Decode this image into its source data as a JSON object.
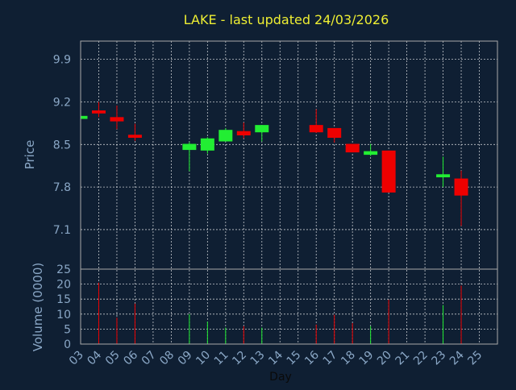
{
  "chart_data": {
    "type": "candlestick",
    "title": "LAKE - last updated 24/03/2026",
    "xlabel": "Day",
    "ylabel_price": "Price",
    "ylabel_volume": "Volume (0000)",
    "x_ticks": [
      "03",
      "04",
      "05",
      "06",
      "07",
      "08",
      "09",
      "10",
      "11",
      "12",
      "13",
      "14",
      "15",
      "16",
      "17",
      "18",
      "19",
      "20",
      "21",
      "22",
      "23",
      "24",
      "25"
    ],
    "price_ticks": [
      9.9,
      9.2,
      8.5,
      7.8,
      7.1
    ],
    "price_ylim": [
      6.45,
      10.2
    ],
    "volume_ticks": [
      0,
      5,
      10,
      15,
      20,
      25
    ],
    "volume_ylim": [
      0,
      25
    ],
    "grid": true,
    "candles": [
      {
        "day": 3,
        "open": 8.92,
        "high": 8.98,
        "low": 8.92,
        "close": 8.97
      },
      {
        "day": 4,
        "open": 9.06,
        "high": 9.2,
        "low": 8.95,
        "close": 9.01
      },
      {
        "day": 5,
        "open": 8.95,
        "high": 9.14,
        "low": 8.75,
        "close": 8.88
      },
      {
        "day": 6,
        "open": 8.66,
        "high": 8.84,
        "low": 8.56,
        "close": 8.61
      },
      {
        "day": 9,
        "open": 8.41,
        "high": 8.54,
        "low": 8.06,
        "close": 8.51
      },
      {
        "day": 10,
        "open": 8.4,
        "high": 8.62,
        "low": 8.35,
        "close": 8.6
      },
      {
        "day": 11,
        "open": 8.55,
        "high": 8.77,
        "low": 8.55,
        "close": 8.74
      },
      {
        "day": 12,
        "open": 8.72,
        "high": 8.86,
        "low": 8.6,
        "close": 8.65
      },
      {
        "day": 13,
        "open": 8.7,
        "high": 8.82,
        "low": 8.55,
        "close": 8.82
      },
      {
        "day": 16,
        "open": 8.82,
        "high": 9.08,
        "low": 8.69,
        "close": 8.7
      },
      {
        "day": 17,
        "open": 8.77,
        "high": 8.77,
        "low": 8.53,
        "close": 8.61
      },
      {
        "day": 18,
        "open": 8.51,
        "high": 8.51,
        "low": 8.37,
        "close": 8.37
      },
      {
        "day": 19,
        "open": 8.33,
        "high": 8.51,
        "low": 8.31,
        "close": 8.39
      },
      {
        "day": 20,
        "open": 8.4,
        "high": 8.4,
        "low": 7.71,
        "close": 7.71
      },
      {
        "day": 23,
        "open": 7.96,
        "high": 8.3,
        "low": 7.8,
        "close": 8.01
      },
      {
        "day": 24,
        "open": 7.94,
        "high": 8.07,
        "low": 7.16,
        "close": 7.66
      }
    ],
    "volumes": [
      {
        "day": 3,
        "value": 0
      },
      {
        "day": 4,
        "value": 20.5
      },
      {
        "day": 5,
        "value": 8.8
      },
      {
        "day": 6,
        "value": 13.5
      },
      {
        "day": 9,
        "value": 10.0
      },
      {
        "day": 10,
        "value": 7.5
      },
      {
        "day": 11,
        "value": 5.5
      },
      {
        "day": 12,
        "value": 6.0
      },
      {
        "day": 13,
        "value": 5.5
      },
      {
        "day": 16,
        "value": 6.5
      },
      {
        "day": 17,
        "value": 9.8
      },
      {
        "day": 18,
        "value": 7.0
      },
      {
        "day": 19,
        "value": 6.0
      },
      {
        "day": 20,
        "value": 14.8
      },
      {
        "day": 23,
        "value": 13.0
      },
      {
        "day": 24,
        "value": 19.5
      }
    ],
    "colors": {
      "background": "#0f1f33",
      "up": "#22ee33",
      "down": "#ee0000",
      "axis_text": "#8aa7c6",
      "title": "#eeee33",
      "grid": "#ffffff",
      "frame": "#aaaaaa"
    }
  }
}
